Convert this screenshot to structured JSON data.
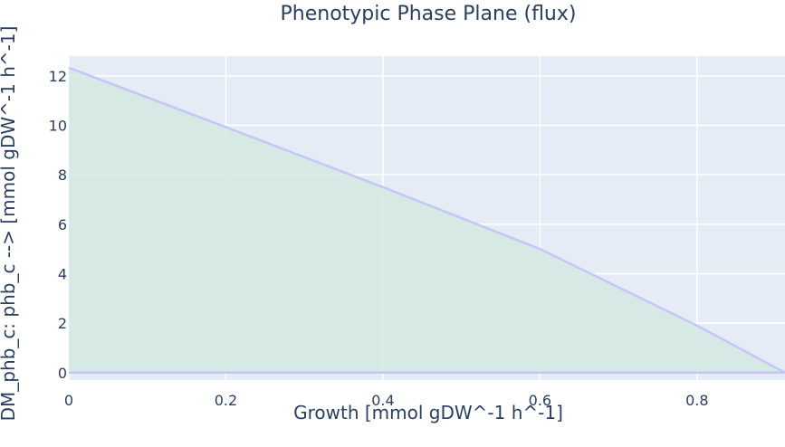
{
  "chart_data": {
    "type": "area",
    "title": "Phenotypic Phase Plane (flux)",
    "xlabel": "Growth [mmol gDW^-1 h^-1]",
    "ylabel": "DM_phb_c: phb_c -->  [mmol gDW^-1 h^-1]",
    "xlim": [
      0,
      0.912
    ],
    "ylim": [
      -0.3,
      12.8
    ],
    "x_ticks": [
      "0",
      "0.2",
      "0.4",
      "0.6",
      "0.8"
    ],
    "y_ticks": [
      "0",
      "2",
      "4",
      "6",
      "8",
      "10",
      "12"
    ],
    "grid": true,
    "series": [
      {
        "role": "upper",
        "x": [
          0,
          0.2,
          0.4,
          0.6,
          0.8,
          0.912
        ],
        "y": [
          12.33,
          9.93,
          7.5,
          5.0,
          1.9,
          0.0
        ]
      },
      {
        "role": "lower",
        "x": [
          0,
          0.912
        ],
        "y": [
          0,
          0
        ]
      }
    ],
    "colors": {
      "plot_bg": "#e5ecf6",
      "grid": "#ffffff",
      "line": "#c3c7f5",
      "fill": "#d3e9e2"
    }
  }
}
